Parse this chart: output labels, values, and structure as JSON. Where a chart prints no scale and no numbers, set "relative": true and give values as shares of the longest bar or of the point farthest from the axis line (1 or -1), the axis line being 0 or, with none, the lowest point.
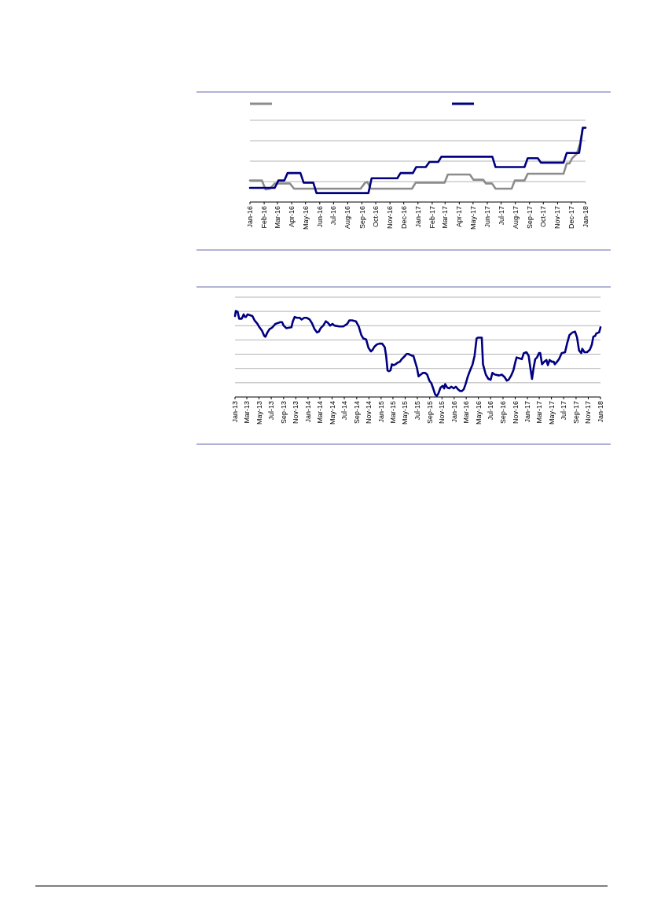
{
  "chart_data": [
    {
      "type": "line",
      "relative": true,
      "grid": "y",
      "xlim": [
        "2016-01",
        "2018-01"
      ],
      "xticks": [
        {
          "value": "2016-01",
          "label": "Jan-16"
        },
        {
          "value": "2016-02",
          "label": "Feb-16"
        },
        {
          "value": "2016-03",
          "label": "Mar-16"
        },
        {
          "value": "2016-04",
          "label": "Apr-16"
        },
        {
          "value": "2016-05",
          "label": "May-16"
        },
        {
          "value": "2016-06",
          "label": "Jun-16"
        },
        {
          "value": "2016-07",
          "label": "Jul-16"
        },
        {
          "value": "2016-08",
          "label": "Aug-16"
        },
        {
          "value": "2016-09",
          "label": "Sep-16"
        },
        {
          "value": "2016-10",
          "label": "Oct-16"
        },
        {
          "value": "2016-11",
          "label": "Nov-16"
        },
        {
          "value": "2016-12",
          "label": "Dec-16"
        },
        {
          "value": "2017-01",
          "label": "Jan-17"
        },
        {
          "value": "2017-02",
          "label": "Feb-17"
        },
        {
          "value": "2017-03",
          "label": "Mar-17"
        },
        {
          "value": "2017-04",
          "label": "Apr-17"
        },
        {
          "value": "2017-05",
          "label": "May-17"
        },
        {
          "value": "2017-06",
          "label": "Jun-17"
        },
        {
          "value": "2017-07",
          "label": "Jul-17"
        },
        {
          "value": "2017-08",
          "label": "Aug-17"
        },
        {
          "value": "2017-09",
          "label": "Sep-17"
        },
        {
          "value": "2017-10",
          "label": "Oct-17"
        },
        {
          "value": "2017-11",
          "label": "Nov-17"
        },
        {
          "value": "2017-12",
          "label": "Dec-17"
        },
        {
          "value": "2018-01",
          "label": "Jan-18"
        }
      ],
      "series": [
        {
          "color": "#8c8c8c",
          "x": [
            "2016-01-01",
            "2016-01-27",
            "2016-02-04",
            "2016-02-14",
            "2016-02-24",
            "2016-03-28",
            "2016-04-06",
            "2016-08-29",
            "2016-09-08",
            "2016-09-13",
            "2016-09-20",
            "2016-12-19",
            "2016-12-27",
            "2017-02-28",
            "2017-03-07",
            "2017-04-24",
            "2017-05-02",
            "2017-05-23",
            "2017-05-29",
            "2017-06-11",
            "2017-06-19",
            "2017-07-24",
            "2017-07-31",
            "2017-08-21",
            "2017-08-28",
            "2017-11-14",
            "2017-11-21",
            "2017-11-27",
            "2017-12-03",
            "2017-12-13",
            "2017-12-20",
            "2017-12-26",
            "2018-01-01"
          ],
          "values": [
            0.29,
            0.29,
            0.17,
            0.18,
            0.25,
            0.25,
            0.18,
            0.18,
            0.26,
            0.27,
            0.18,
            0.18,
            0.26,
            0.26,
            0.37,
            0.37,
            0.3,
            0.3,
            0.25,
            0.25,
            0.18,
            0.18,
            0.29,
            0.29,
            0.38,
            0.38,
            0.52,
            0.52,
            0.59,
            0.65,
            0.79,
            1,
            1
          ]
        },
        {
          "color": "#000080",
          "x": [
            "2016-01-01",
            "2016-02-24",
            "2016-03-03",
            "2016-03-16",
            "2016-03-23",
            "2016-04-20",
            "2016-04-27",
            "2016-05-18",
            "2016-05-25",
            "2016-09-15",
            "2016-09-22",
            "2016-11-17",
            "2016-11-24",
            "2016-12-21",
            "2016-12-28",
            "2017-01-18",
            "2017-01-26",
            "2017-02-14",
            "2017-02-21",
            "2017-06-12",
            "2017-06-19",
            "2017-08-21",
            "2017-08-28",
            "2017-09-19",
            "2017-09-26",
            "2017-11-14",
            "2017-11-21",
            "2017-12-18",
            "2017-12-26",
            "2018-01-01"
          ],
          "values": [
            0.19,
            0.19,
            0.29,
            0.29,
            0.39,
            0.39,
            0.26,
            0.26,
            0.12,
            0.12,
            0.32,
            0.32,
            0.39,
            0.39,
            0.47,
            0.47,
            0.54,
            0.54,
            0.61,
            0.61,
            0.47,
            0.47,
            0.59,
            0.59,
            0.53,
            0.53,
            0.66,
            0.66,
            1,
            1
          ]
        }
      ]
    },
    {
      "type": "line",
      "relative": true,
      "grid": "y",
      "xlim": [
        "2013-01",
        "2018-01"
      ],
      "xticks": [
        {
          "value": "2013-01",
          "label": "Jan-13"
        },
        {
          "value": "2013-03",
          "label": "Mar-13"
        },
        {
          "value": "2013-05",
          "label": "May-13"
        },
        {
          "value": "2013-07",
          "label": "Jul-13"
        },
        {
          "value": "2013-09",
          "label": "Sep-13"
        },
        {
          "value": "2013-11",
          "label": "Nov-13"
        },
        {
          "value": "2014-01",
          "label": "Jan-14"
        },
        {
          "value": "2014-03",
          "label": "Mar-14"
        },
        {
          "value": "2014-05",
          "label": "May-14"
        },
        {
          "value": "2014-07",
          "label": "Jul-14"
        },
        {
          "value": "2014-09",
          "label": "Sep-14"
        },
        {
          "value": "2014-11",
          "label": "Nov-14"
        },
        {
          "value": "2015-01",
          "label": "Jan-15"
        },
        {
          "value": "2015-03",
          "label": "Mar-15"
        },
        {
          "value": "2015-05",
          "label": "May-15"
        },
        {
          "value": "2015-07",
          "label": "Jul-15"
        },
        {
          "value": "2015-09",
          "label": "Sep-15"
        },
        {
          "value": "2015-11",
          "label": "Nov-15"
        },
        {
          "value": "2016-01",
          "label": "Jan-16"
        },
        {
          "value": "2016-03",
          "label": "Mar-16"
        },
        {
          "value": "2016-05",
          "label": "May-16"
        },
        {
          "value": "2016-07",
          "label": "Jul-16"
        },
        {
          "value": "2016-09",
          "label": "Sep-16"
        },
        {
          "value": "2016-11",
          "label": "Nov-16"
        },
        {
          "value": "2017-01",
          "label": "Jan-17"
        },
        {
          "value": "2017-03",
          "label": "Mar-17"
        },
        {
          "value": "2017-05",
          "label": "May-17"
        },
        {
          "value": "2017-07",
          "label": "Jul-17"
        },
        {
          "value": "2017-09",
          "label": "Sep-17"
        },
        {
          "value": "2017-11",
          "label": "Nov-17"
        },
        {
          "value": "2018-01",
          "label": "Jan-18"
        }
      ],
      "series": [
        {
          "color": "#000080",
          "x": [
            "2013-01-01",
            "2013-01-05",
            "2013-01-14",
            "2013-01-22",
            "2013-02-04",
            "2013-02-13",
            "2013-02-20",
            "2013-02-25",
            "2013-03-05",
            "2013-03-17",
            "2013-03-29",
            "2013-04-09",
            "2013-04-23",
            "2013-05-03",
            "2013-05-16",
            "2013-05-27",
            "2013-06-02",
            "2013-06-12",
            "2013-06-23",
            "2013-07-02",
            "2013-07-11",
            "2013-07-22",
            "2013-08-05",
            "2013-08-15",
            "2013-08-24",
            "2013-09-01",
            "2013-09-14",
            "2013-10-10",
            "2013-10-17",
            "2013-10-26",
            "2013-11-06",
            "2013-11-20",
            "2013-11-30",
            "2013-12-13",
            "2013-12-26",
            "2014-01-09",
            "2014-01-20",
            "2014-02-02",
            "2014-02-15",
            "2014-02-24",
            "2014-03-05",
            "2014-03-18",
            "2014-03-31",
            "2014-04-11",
            "2014-04-21",
            "2014-05-03",
            "2014-05-13",
            "2014-06-06",
            "2014-06-26",
            "2014-07-16",
            "2014-07-26",
            "2014-08-09",
            "2014-08-28",
            "2014-09-11",
            "2014-09-24",
            "2014-10-04",
            "2014-10-18",
            "2014-10-30",
            "2014-11-11",
            "2014-11-20",
            "2014-11-27",
            "2014-12-10",
            "2014-12-23",
            "2015-01-06",
            "2015-01-19",
            "2015-01-26",
            "2015-02-02",
            "2015-02-09",
            "2015-02-17",
            "2015-02-24",
            "2015-03-05",
            "2015-03-14",
            "2015-03-25",
            "2015-04-05",
            "2015-04-14",
            "2015-04-27",
            "2015-05-08",
            "2015-05-17",
            "2015-06-03",
            "2015-06-11",
            "2015-06-20",
            "2015-06-29",
            "2015-07-07",
            "2015-07-18",
            "2015-07-29",
            "2015-08-09",
            "2015-08-19",
            "2015-08-30",
            "2015-09-09",
            "2015-09-18",
            "2015-09-28",
            "2015-10-06",
            "2015-10-14",
            "2015-10-25",
            "2015-11-05",
            "2015-11-12",
            "2015-11-17",
            "2015-11-27",
            "2015-12-08",
            "2015-12-17",
            "2015-12-24",
            "2015-12-30",
            "2016-01-09",
            "2016-01-20",
            "2016-01-30",
            "2016-02-09",
            "2016-02-18",
            "2016-02-27",
            "2016-03-08",
            "2016-03-19",
            "2016-04-02",
            "2016-04-12",
            "2016-04-22",
            "2016-04-28",
            "2016-05-18",
            "2016-05-24",
            "2016-06-07",
            "2016-06-20",
            "2016-07-01",
            "2016-07-10",
            "2016-07-23",
            "2016-08-13",
            "2016-08-26",
            "2016-09-09",
            "2016-09-20",
            "2016-09-29",
            "2016-10-12",
            "2016-10-23",
            "2016-11-02",
            "2016-11-08",
            "2016-11-21",
            "2016-12-04",
            "2016-12-14",
            "2016-12-27",
            "2017-01-07",
            "2017-01-18",
            "2017-01-24",
            "2017-02-01",
            "2017-02-09",
            "2017-02-18",
            "2017-02-28",
            "2017-03-06",
            "2017-03-15",
            "2017-03-26",
            "2017-04-06",
            "2017-04-13",
            "2017-04-22",
            "2017-05-03",
            "2017-05-12",
            "2017-05-18",
            "2017-05-29",
            "2017-06-08",
            "2017-06-21",
            "2017-07-08",
            "2017-07-18",
            "2017-07-30",
            "2017-08-14",
            "2017-08-27",
            "2017-09-06",
            "2017-09-16",
            "2017-09-27",
            "2017-10-02",
            "2017-10-13",
            "2017-10-26",
            "2017-11-09",
            "2017-11-19",
            "2017-11-26",
            "2017-12-05",
            "2017-12-12",
            "2017-12-25",
            "2018-01-01"
          ],
          "values": [
            0.94,
            1,
            0.99,
            0.91,
            0.91,
            0.96,
            0.93,
            0.93,
            0.96,
            0.95,
            0.94,
            0.89,
            0.85,
            0.81,
            0.77,
            0.71,
            0.7,
            0.75,
            0.79,
            0.8,
            0.82,
            0.85,
            0.86,
            0.87,
            0.87,
            0.83,
            0.8,
            0.81,
            0.88,
            0.93,
            0.92,
            0.92,
            0.9,
            0.92,
            0.92,
            0.9,
            0.86,
            0.79,
            0.75,
            0.76,
            0.8,
            0.83,
            0.88,
            0.86,
            0.83,
            0.85,
            0.83,
            0.82,
            0.82,
            0.85,
            0.89,
            0.89,
            0.88,
            0.82,
            0.72,
            0.68,
            0.67,
            0.57,
            0.53,
            0.55,
            0.58,
            0.61,
            0.62,
            0.62,
            0.58,
            0.48,
            0.31,
            0.3,
            0.31,
            0.38,
            0.37,
            0.38,
            0.4,
            0.41,
            0.44,
            0.47,
            0.5,
            0.5,
            0.48,
            0.48,
            0.41,
            0.34,
            0.24,
            0.26,
            0.28,
            0.28,
            0.26,
            0.19,
            0.16,
            0.1,
            0.03,
            0.01,
            0.04,
            0.11,
            0.13,
            0.1,
            0.15,
            0.11,
            0.1,
            0.12,
            0.11,
            0.1,
            0.12,
            0.09,
            0.07,
            0.07,
            0.09,
            0.15,
            0.23,
            0.3,
            0.38,
            0.48,
            0.68,
            0.69,
            0.69,
            0.38,
            0.26,
            0.21,
            0.2,
            0.28,
            0.26,
            0.25,
            0.26,
            0.23,
            0.19,
            0.2,
            0.25,
            0.31,
            0.41,
            0.46,
            0.45,
            0.44,
            0.51,
            0.52,
            0.48,
            0.3,
            0.21,
            0.34,
            0.44,
            0.46,
            0.51,
            0.51,
            0.38,
            0.41,
            0.43,
            0.37,
            0.43,
            0.41,
            0.41,
            0.38,
            0.41,
            0.44,
            0.51,
            0.52,
            0.62,
            0.72,
            0.75,
            0.76,
            0.69,
            0.54,
            0.51,
            0.56,
            0.52,
            0.52,
            0.55,
            0.61,
            0.7,
            0.71,
            0.74,
            0.75,
            0.81
          ]
        }
      ]
    }
  ]
}
